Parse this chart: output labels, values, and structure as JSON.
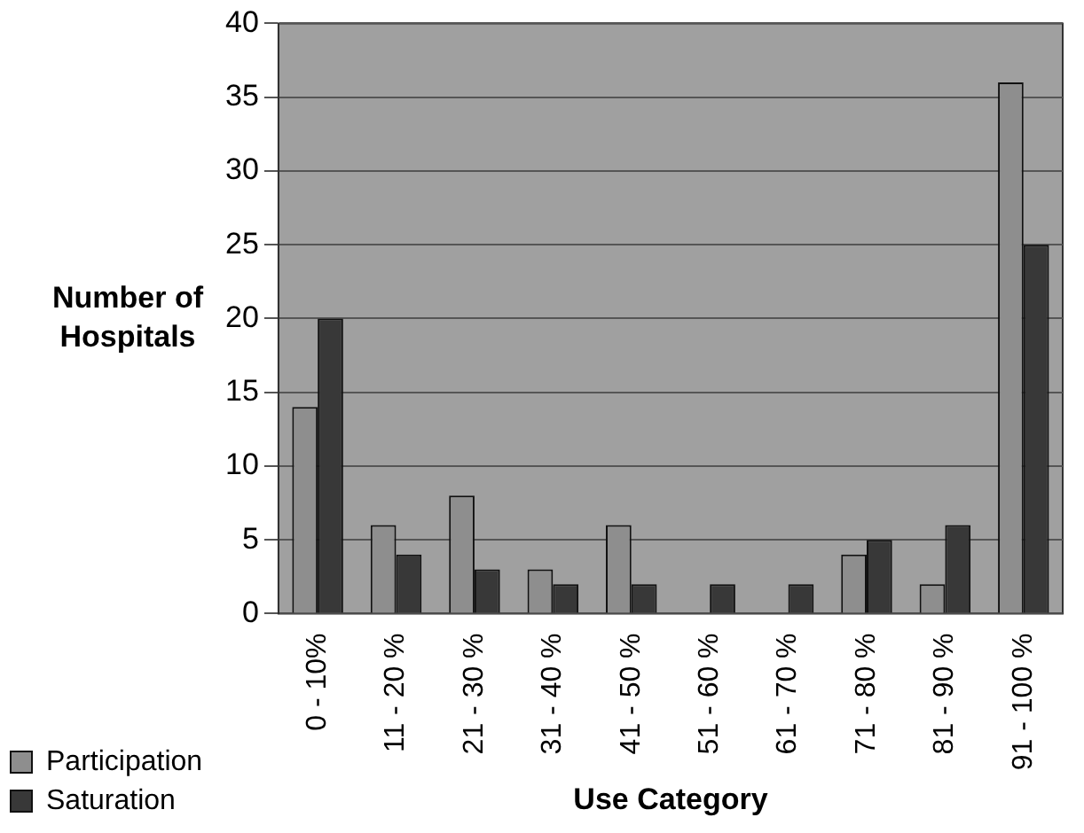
{
  "chart_data": {
    "type": "bar",
    "ylabel": "Number of Hospitals",
    "xlabel": "Use Category",
    "categories": [
      "0 - 10%",
      "11 - 20 %",
      "21 - 30 %",
      "31 - 40 %",
      "41 - 50 %",
      "51 - 60 %",
      "61 - 70 %",
      "71 - 80 %",
      "81 - 90 %",
      "91 - 100 %"
    ],
    "series": [
      {
        "name": "Participation",
        "color": "#8e8e8e",
        "values": [
          14,
          6,
          8,
          3,
          6,
          0,
          0,
          4,
          2,
          36
        ]
      },
      {
        "name": "Saturation",
        "color": "#383838",
        "values": [
          20,
          4,
          3,
          2,
          2,
          2,
          2,
          5,
          6,
          25
        ]
      }
    ],
    "ylim": [
      0,
      40
    ],
    "yticks": [
      0,
      5,
      10,
      15,
      20,
      25,
      30,
      35,
      40
    ],
    "grid": "y",
    "legend": "bottom left"
  }
}
